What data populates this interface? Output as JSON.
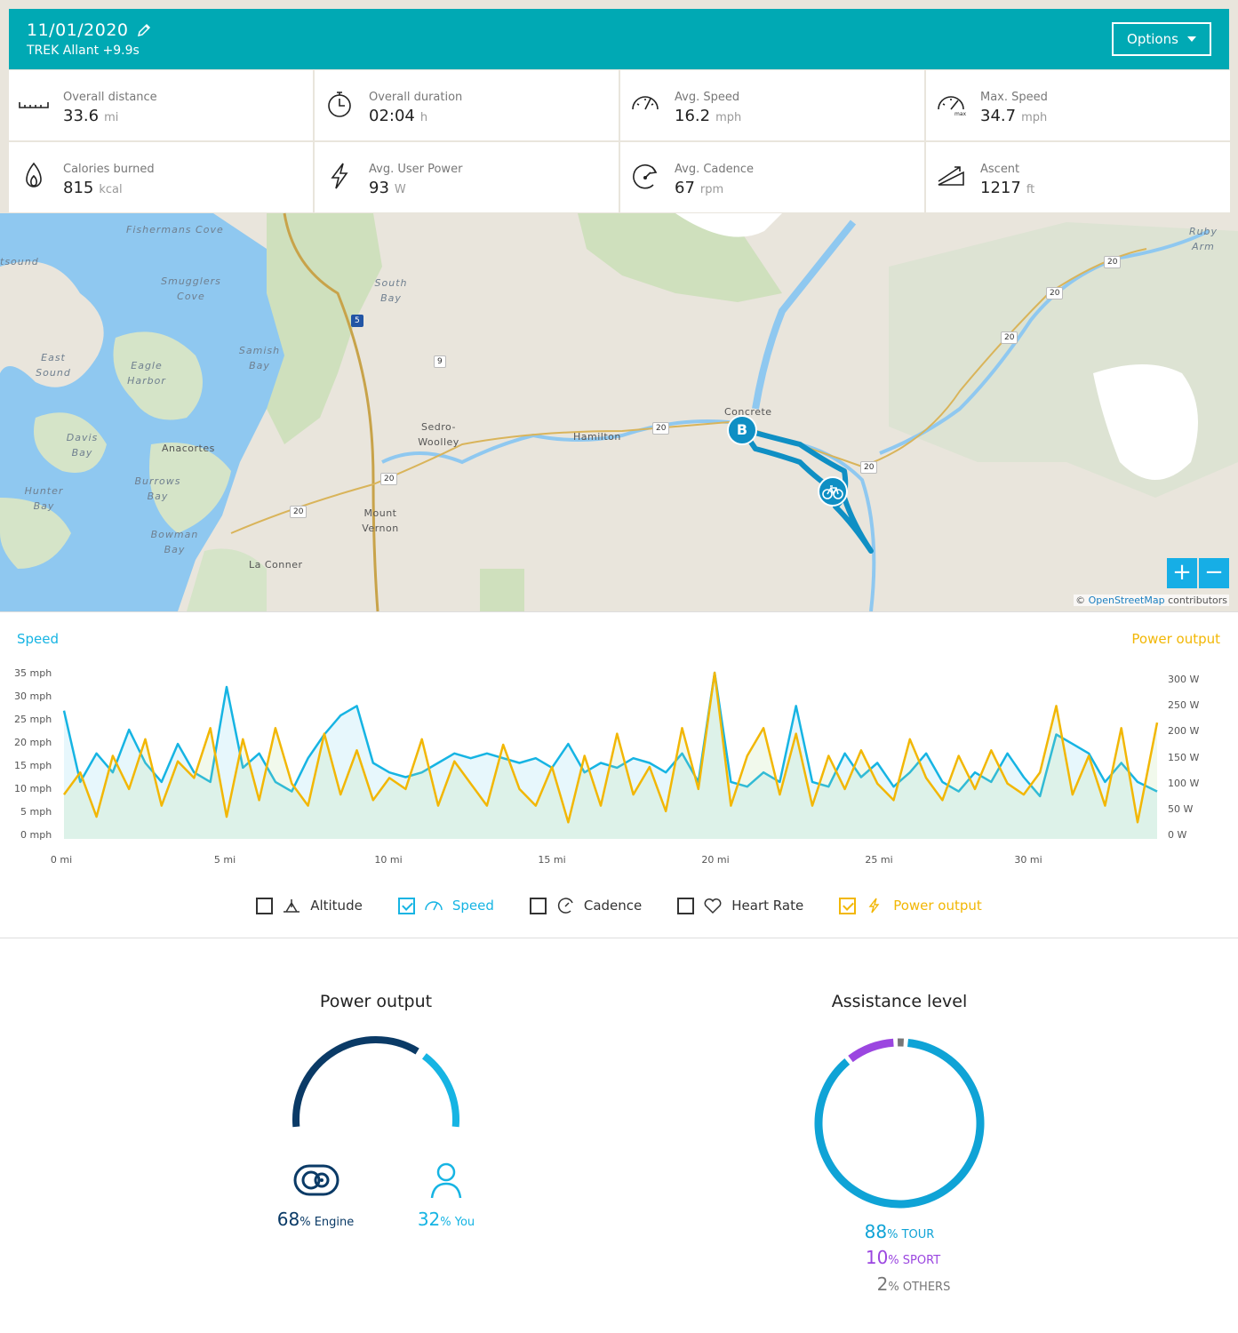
{
  "header": {
    "date": "11/01/2020",
    "bike": "TREK Allant +9.9s",
    "options_label": "Options"
  },
  "stats": [
    {
      "label": "Overall distance",
      "value": "33.6",
      "unit": "mi",
      "icon": "ruler-icon"
    },
    {
      "label": "Overall duration",
      "value": "02:04",
      "unit": "h",
      "icon": "stopwatch-icon"
    },
    {
      "label": "Avg. Speed",
      "value": "16.2",
      "unit": "mph",
      "icon": "speedometer-icon"
    },
    {
      "label": "Max. Speed",
      "value": "34.7",
      "unit": "mph",
      "icon": "max-speedometer-icon"
    },
    {
      "label": "Calories burned",
      "value": "815",
      "unit": "kcal",
      "icon": "flame-icon"
    },
    {
      "label": "Avg. User Power",
      "value": "93",
      "unit": "W",
      "icon": "lightning-icon"
    },
    {
      "label": "Avg. Cadence",
      "value": "67",
      "unit": "rpm",
      "icon": "cadence-icon"
    },
    {
      "label": "Ascent",
      "value": "1217",
      "unit": "ft",
      "icon": "ascent-icon"
    }
  ],
  "map": {
    "labels": {
      "fishermans_cove": "Fishermans Cove",
      "south_bay": "South Bay",
      "smugglers_cove": "Smugglers Cove",
      "samish_bay": "Samish Bay",
      "east_sound": "East Sound",
      "eagle_harbor": "Eagle Harbor",
      "davis_bay": "Davis Bay",
      "anacortes": "Anacortes",
      "burrows_bay": "Burrows Bay",
      "hunter_bay": "Hunter Bay",
      "bowman_bay": "Bowman Bay",
      "la_conner": "La Conner",
      "sedro_woolley": "Sedro-Woolley",
      "mount_vernon": "Mount Vernon",
      "hamilton": "Hamilton",
      "concrete": "Concrete",
      "ruby_arm": "Ruby Arm",
      "tsound": "tsound"
    },
    "route_marker": "B",
    "zoom_in": "+",
    "zoom_out": "−",
    "attribution_prefix": "©",
    "attribution_link": "OpenStreetMap",
    "attribution_suffix": "contributors"
  },
  "chart_labels": {
    "left_title": "Speed",
    "right_title": "Power output",
    "y_left_ticks": [
      "35 mph",
      "30 mph",
      "25 mph",
      "20 mph",
      "15 mph",
      "10 mph",
      "5 mph",
      "0 mph"
    ],
    "y_right_ticks": [
      "300 W",
      "250 W",
      "200 W",
      "150 W",
      "100 W",
      "50 W",
      "0 W"
    ],
    "x_ticks": [
      "0 mi",
      "5 mi",
      "10 mi",
      "15 mi",
      "20 mi",
      "25 mi",
      "30 mi"
    ]
  },
  "chart_data": {
    "type": "line",
    "xlabel": "",
    "x_unit": "mi",
    "xlim": [
      0,
      33.6
    ],
    "series": [
      {
        "name": "Speed",
        "unit": "mph",
        "color": "#16b4e3",
        "ylim": [
          0,
          35
        ],
        "x": [
          0,
          0.5,
          1,
          1.5,
          2,
          2.5,
          3,
          3.5,
          4,
          4.5,
          5,
          5.5,
          6,
          6.5,
          7,
          7.5,
          8,
          8.5,
          9,
          9.5,
          10,
          10.5,
          11,
          11.5,
          12,
          12.5,
          13,
          13.5,
          14,
          14.5,
          15,
          15.5,
          16,
          16.5,
          17,
          17.5,
          18,
          18.5,
          19,
          19.5,
          20,
          20.5,
          21,
          21.5,
          22,
          22.5,
          23,
          23.5,
          24,
          24.5,
          25,
          25.5,
          26,
          26.5,
          27,
          27.5,
          28,
          28.5,
          29,
          29.5,
          30,
          30.5,
          31,
          31.5,
          32,
          32.5,
          33,
          33.6
        ],
        "values": [
          27,
          12,
          18,
          14,
          23,
          16,
          12,
          20,
          14,
          12,
          32,
          15,
          18,
          12,
          10,
          17,
          22,
          26,
          28,
          16,
          14,
          13,
          14,
          16,
          18,
          17,
          18,
          17,
          16,
          17,
          15,
          20,
          14,
          16,
          15,
          17,
          16,
          14,
          18,
          12,
          35,
          12,
          11,
          14,
          12,
          28,
          12,
          11,
          18,
          13,
          16,
          11,
          14,
          18,
          12,
          10,
          14,
          12,
          18,
          13,
          9,
          22,
          20,
          18,
          12,
          16,
          12,
          10
        ]
      },
      {
        "name": "Power output",
        "unit": "W",
        "color": "#f2b705",
        "ylim": [
          0,
          300
        ],
        "x": [
          0,
          0.5,
          1,
          1.5,
          2,
          2.5,
          3,
          3.5,
          4,
          4.5,
          5,
          5.5,
          6,
          6.5,
          7,
          7.5,
          8,
          8.5,
          9,
          9.5,
          10,
          10.5,
          11,
          11.5,
          12,
          12.5,
          13,
          13.5,
          14,
          14.5,
          15,
          15.5,
          16,
          16.5,
          17,
          17.5,
          18,
          18.5,
          19,
          19.5,
          20,
          20.5,
          21,
          21.5,
          22,
          22.5,
          23,
          23.5,
          24,
          24.5,
          25,
          25.5,
          26,
          26.5,
          27,
          27.5,
          28,
          28.5,
          29,
          29.5,
          30,
          30.5,
          31,
          31.5,
          32,
          32.5,
          33,
          33.6
        ],
        "values": [
          80,
          120,
          40,
          150,
          90,
          180,
          60,
          140,
          110,
          200,
          40,
          180,
          70,
          200,
          100,
          60,
          190,
          80,
          160,
          70,
          110,
          90,
          180,
          60,
          140,
          100,
          60,
          170,
          90,
          60,
          130,
          30,
          150,
          60,
          190,
          80,
          130,
          50,
          200,
          90,
          300,
          60,
          150,
          200,
          80,
          190,
          60,
          150,
          90,
          160,
          100,
          70,
          180,
          110,
          70,
          150,
          90,
          160,
          100,
          80,
          120,
          240,
          80,
          150,
          60,
          200,
          30,
          210
        ]
      }
    ]
  },
  "toggles": [
    {
      "label": "Altitude",
      "checked": false,
      "icon": "altitude-icon"
    },
    {
      "label": "Speed",
      "checked": true,
      "icon": "speedometer-icon"
    },
    {
      "label": "Cadence",
      "checked": false,
      "icon": "cadence-icon"
    },
    {
      "label": "Heart Rate",
      "checked": false,
      "icon": "heart-icon"
    },
    {
      "label": "Power output",
      "checked": true,
      "icon": "lightning-icon"
    }
  ],
  "power_output": {
    "title": "Power output",
    "engine_value": "68",
    "engine_label": "% Engine",
    "you_value": "32",
    "you_label": "% You",
    "engine_fraction": 0.68,
    "engine_color": "#0a3a66",
    "you_color": "#16b4e3"
  },
  "assistance": {
    "title": "Assistance level",
    "tour_value": "88",
    "tour_label": "% TOUR",
    "sport_value": "10",
    "sport_label": "% SPORT",
    "others_value": "2",
    "others_label": "% OTHERS",
    "fractions": [
      0.88,
      0.1,
      0.02
    ],
    "colors": [
      "#0fa3d6",
      "#9b46e0",
      "#777777"
    ]
  }
}
